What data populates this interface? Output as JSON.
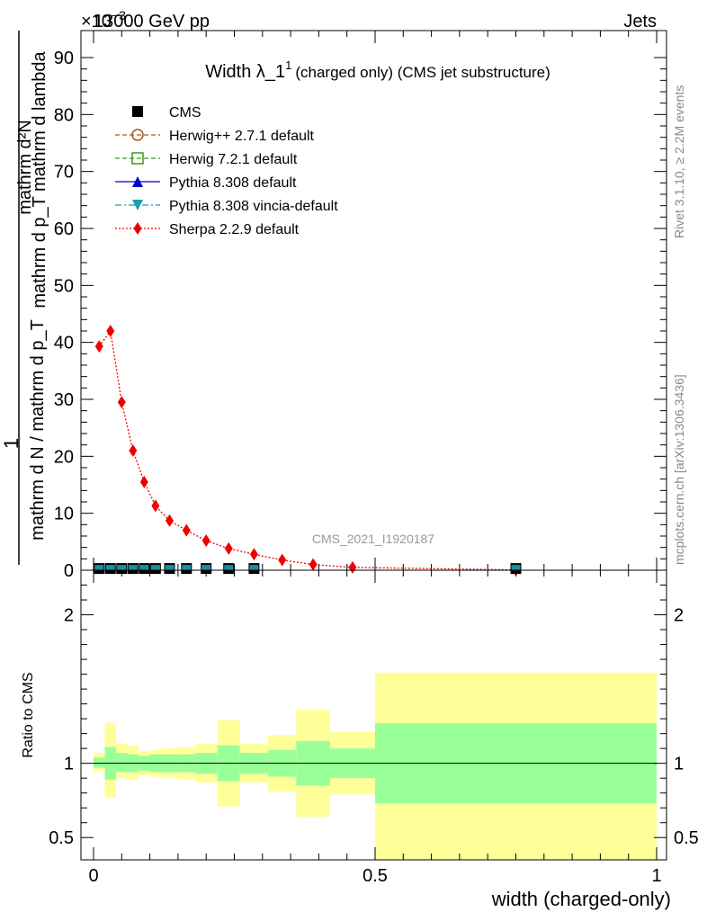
{
  "header": {
    "left": "13000 GeV pp",
    "right": "Jets",
    "exponent": "×10",
    "exponent_power": "−3"
  },
  "side_labels": {
    "rivet": "Rivet 3.1.10, ≥ 2.2M events",
    "mcplots": "mcplots.cern.ch [arXiv:1306.3436]"
  },
  "watermark": "CMS_2021_I1920187",
  "colors": {
    "herwigpp": "#a05a1a",
    "herwig7": "#3a9a1a",
    "pythia": "#0000cc",
    "vincia": "#1a9fb0",
    "sherpa": "#ee0000",
    "band_inner": "#99ff99",
    "band_outer": "#ffff99"
  },
  "chart_data": [
    {
      "type": "line",
      "title": "Width λ_1",
      "title_sup": "1",
      "title_suffix": "(charged only) (CMS jet substructure)",
      "ylabel_top": "1",
      "ylabel_den": "mathrm d N / mathrm d p_T",
      "ylabel_num": "mathrm d²N",
      "ylabel_den2": "mathrm d p_T mathrm d lambda",
      "ylim": [
        0,
        95
      ],
      "xlim": [
        0,
        1
      ],
      "yticks": [
        0,
        10,
        20,
        30,
        40,
        50,
        60,
        70,
        80,
        90
      ],
      "y_scale_note": "values ×10^-3",
      "legend_position": "top-left",
      "legend": [
        {
          "key": "cms",
          "label": "CMS"
        },
        {
          "key": "herwigpp",
          "label": "Herwig++ 2.7.1 default"
        },
        {
          "key": "herwig7",
          "label": "Herwig 7.2.1 default"
        },
        {
          "key": "pythia",
          "label": "Pythia 8.308 default"
        },
        {
          "key": "vincia",
          "label": "Pythia 8.308 vincia-default"
        },
        {
          "key": "sherpa",
          "label": "Sherpa 2.2.9 default"
        }
      ],
      "series": [
        {
          "name": "CMS",
          "x": [
            0.01,
            0.03,
            0.05,
            0.07,
            0.09,
            0.11,
            0.135,
            0.165,
            0.2,
            0.24,
            0.285,
            0.75
          ],
          "y": [
            0.3,
            0.3,
            0.3,
            0.3,
            0.3,
            0.3,
            0.3,
            0.3,
            0.3,
            0.3,
            0.3,
            0.3
          ]
        },
        {
          "name": "Sherpa 2.2.9 default",
          "x": [
            0.01,
            0.03,
            0.05,
            0.07,
            0.09,
            0.11,
            0.135,
            0.165,
            0.2,
            0.24,
            0.285,
            0.335,
            0.39,
            0.46,
            0.75
          ],
          "y": [
            39.3,
            42.0,
            29.5,
            21.0,
            15.5,
            11.3,
            8.7,
            7.0,
            5.2,
            3.8,
            2.8,
            1.8,
            1.0,
            0.5,
            0.05
          ]
        }
      ]
    },
    {
      "type": "area",
      "ylabel": "Ratio to CMS",
      "xlabel": "width (charged-only)",
      "xlim": [
        0,
        1
      ],
      "ylim": [
        0.35,
        2.3
      ],
      "yticks": [
        0.5,
        1,
        2
      ],
      "xticks": [
        0,
        0.5,
        1
      ],
      "reference_line": 1,
      "bins": [
        {
          "x0": 0.0,
          "x1": 0.02,
          "inner": [
            0.97,
            1.04
          ],
          "outer": [
            0.95,
            1.07
          ]
        },
        {
          "x0": 0.02,
          "x1": 0.04,
          "inner": [
            0.89,
            1.11
          ],
          "outer": [
            0.77,
            1.27
          ]
        },
        {
          "x0": 0.04,
          "x1": 0.06,
          "inner": [
            0.94,
            1.07
          ],
          "outer": [
            0.9,
            1.13
          ]
        },
        {
          "x0": 0.06,
          "x1": 0.08,
          "inner": [
            0.94,
            1.06
          ],
          "outer": [
            0.89,
            1.12
          ]
        },
        {
          "x0": 0.08,
          "x1": 0.1,
          "inner": [
            0.95,
            1.05
          ],
          "outer": [
            0.92,
            1.08
          ]
        },
        {
          "x0": 0.1,
          "x1": 0.12,
          "inner": [
            0.94,
            1.06
          ],
          "outer": [
            0.91,
            1.09
          ]
        },
        {
          "x0": 0.12,
          "x1": 0.15,
          "inner": [
            0.94,
            1.06
          ],
          "outer": [
            0.9,
            1.1
          ]
        },
        {
          "x0": 0.15,
          "x1": 0.18,
          "inner": [
            0.94,
            1.06
          ],
          "outer": [
            0.89,
            1.11
          ]
        },
        {
          "x0": 0.18,
          "x1": 0.22,
          "inner": [
            0.93,
            1.07
          ],
          "outer": [
            0.87,
            1.13
          ]
        },
        {
          "x0": 0.22,
          "x1": 0.26,
          "inner": [
            0.88,
            1.12
          ],
          "outer": [
            0.71,
            1.29
          ]
        },
        {
          "x0": 0.26,
          "x1": 0.31,
          "inner": [
            0.93,
            1.07
          ],
          "outer": [
            0.87,
            1.13
          ]
        },
        {
          "x0": 0.31,
          "x1": 0.36,
          "inner": [
            0.91,
            1.09
          ],
          "outer": [
            0.81,
            1.19
          ]
        },
        {
          "x0": 0.36,
          "x1": 0.42,
          "inner": [
            0.85,
            1.15
          ],
          "outer": [
            0.64,
            1.36
          ]
        },
        {
          "x0": 0.42,
          "x1": 0.5,
          "inner": [
            0.9,
            1.1
          ],
          "outer": [
            0.79,
            1.21
          ]
        },
        {
          "x0": 0.5,
          "x1": 1.0,
          "inner": [
            0.73,
            1.27
          ],
          "outer": [
            0.35,
            1.61
          ]
        }
      ]
    }
  ]
}
